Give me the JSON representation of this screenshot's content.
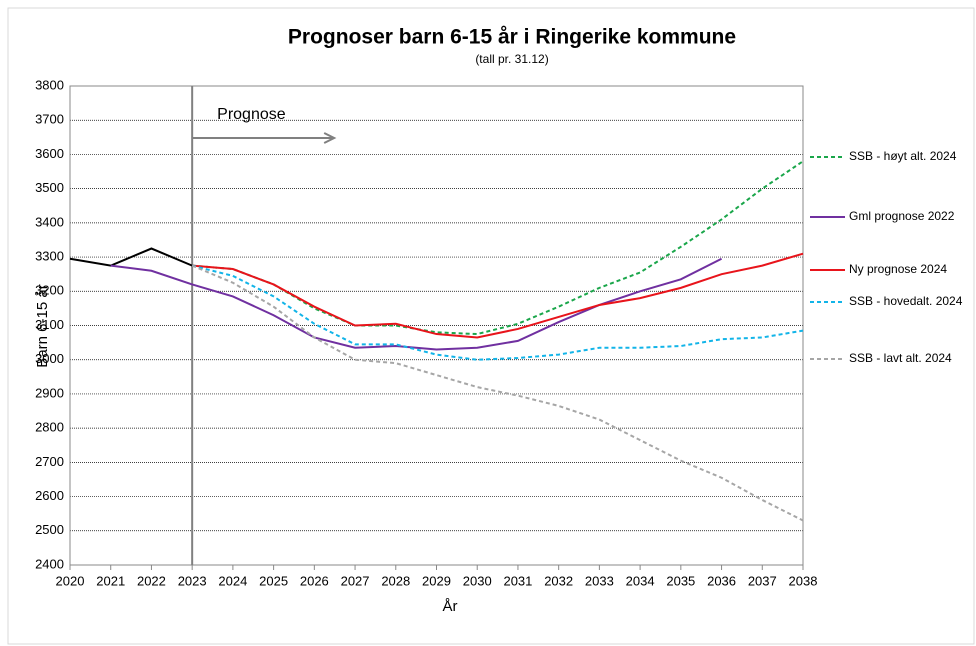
{
  "chart_data": {
    "type": "line",
    "title": "Prognoser barn 6-15 år i Ringerike kommune",
    "subtitle": "(tall pr. 31.12)",
    "x_label": "År",
    "y_label": "Barn 6-15 år",
    "x": [
      2020,
      2021,
      2022,
      2023,
      2024,
      2025,
      2026,
      2027,
      2028,
      2029,
      2030,
      2031,
      2032,
      2033,
      2034,
      2035,
      2036,
      2037,
      2038
    ],
    "xlim": [
      2020,
      2038
    ],
    "xticks": [
      2020,
      2021,
      2022,
      2023,
      2024,
      2025,
      2026,
      2027,
      2028,
      2029,
      2030,
      2031,
      2032,
      2033,
      2034,
      2035,
      2036,
      2037,
      2038
    ],
    "ylim": [
      2400,
      3800
    ],
    "yticks": [
      2400,
      2500,
      2600,
      2700,
      2800,
      2900,
      3000,
      3100,
      3200,
      3300,
      3400,
      3500,
      3600,
      3700,
      3800
    ],
    "grid": true,
    "legend": "right",
    "annotation": {
      "text": "Prognose",
      "x": 2023
    },
    "series": [
      {
        "color": "#000000",
        "dash": false,
        "values": [
          3295,
          3275,
          3325,
          3275,
          null,
          null,
          null,
          null,
          null,
          null,
          null,
          null,
          null,
          null,
          null,
          null,
          null,
          null,
          null
        ]
      },
      {
        "name": "SSB - høyt alt. 2024",
        "color": "#1aa64a",
        "dash": true,
        "values": [
          null,
          null,
          null,
          3275,
          3265,
          3220,
          3150,
          3100,
          3100,
          3080,
          3075,
          3105,
          3155,
          3210,
          3255,
          3330,
          3410,
          3500,
          3580
        ]
      },
      {
        "name": "Gml prognose 2022",
        "color": "#7030a0",
        "dash": false,
        "values": [
          null,
          3275,
          3260,
          3220,
          3185,
          3130,
          3065,
          3035,
          3040,
          3030,
          3035,
          3055,
          3110,
          3160,
          3200,
          3235,
          3295,
          null,
          null
        ]
      },
      {
        "name": "Ny prognose 2024",
        "color": "#e8141b",
        "dash": false,
        "values": [
          null,
          null,
          null,
          3275,
          3265,
          3220,
          3155,
          3100,
          3105,
          3075,
          3065,
          3090,
          3125,
          3160,
          3180,
          3210,
          3250,
          3275,
          3310
        ]
      },
      {
        "name": "SSB - hovedalt. 2024",
        "color": "#12b4e8",
        "dash": true,
        "values": [
          null,
          null,
          null,
          3275,
          3245,
          3185,
          3105,
          3045,
          3045,
          3015,
          3000,
          3005,
          3015,
          3035,
          3035,
          3040,
          3060,
          3065,
          3085
        ]
      },
      {
        "name": "SSB - lavt alt. 2024",
        "color": "#a6a6a6",
        "dash": true,
        "values": [
          null,
          null,
          null,
          3275,
          3225,
          3155,
          3065,
          3000,
          2990,
          2955,
          2920,
          2895,
          2865,
          2825,
          2765,
          2705,
          2655,
          2590,
          2530
        ]
      }
    ]
  }
}
